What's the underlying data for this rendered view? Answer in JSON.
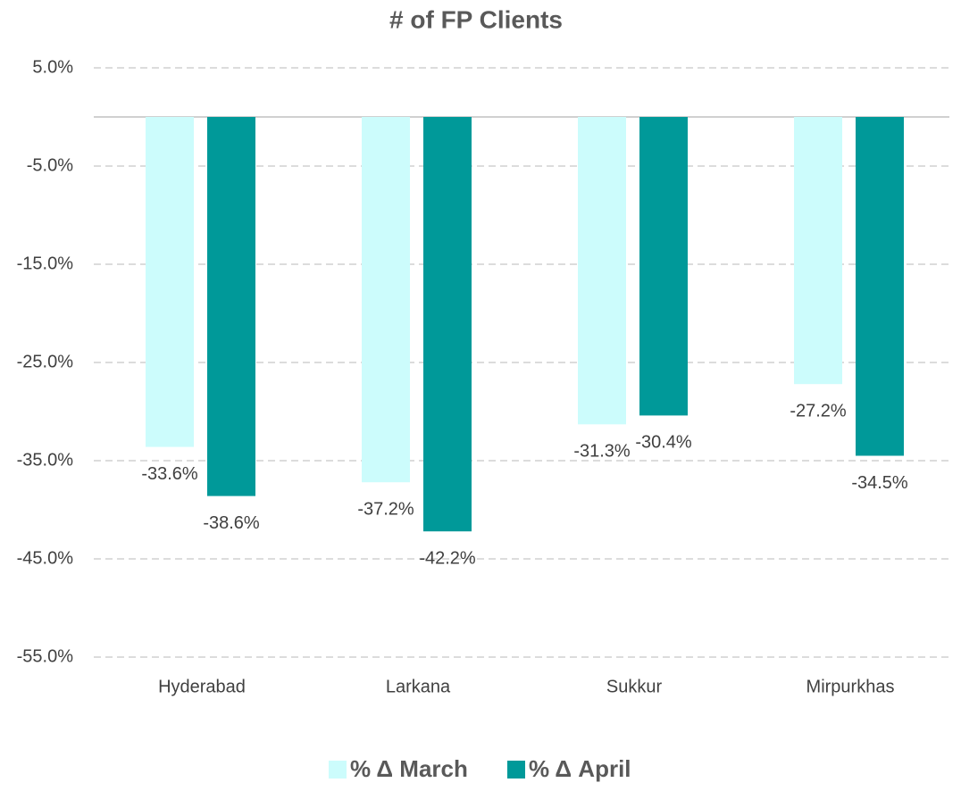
{
  "chart_data": {
    "type": "bar",
    "title": "# of FP Clients",
    "categories": [
      "Hyderabad",
      "Larkana",
      "Sukkur",
      "Mirpurkhas"
    ],
    "series": [
      {
        "name": "% Δ March",
        "color": "#ccfcfc",
        "values": [
          -33.6,
          -37.2,
          -31.3,
          -27.2
        ],
        "value_labels": [
          "-33.6%",
          "-37.2%",
          "-31.3%",
          "-27.2%"
        ]
      },
      {
        "name": "% Δ April",
        "color": "#009999",
        "values": [
          -38.6,
          -42.2,
          -30.4,
          -34.5
        ],
        "value_labels": [
          "-38.6%",
          "-42.2%",
          "-30.4%",
          "-34.5%"
        ]
      }
    ],
    "ylim": [
      -55,
      5
    ],
    "yticks": [
      {
        "value": 5,
        "label": "5.0%"
      },
      {
        "value": -5,
        "label": "-5.0%"
      },
      {
        "value": -15,
        "label": "-15.0%"
      },
      {
        "value": -25,
        "label": "-25.0%"
      },
      {
        "value": -35,
        "label": "-35.0%"
      },
      {
        "value": -45,
        "label": "-45.0%"
      },
      {
        "value": -55,
        "label": "-55.0%"
      }
    ],
    "grid": true,
    "legend": "bottom"
  }
}
